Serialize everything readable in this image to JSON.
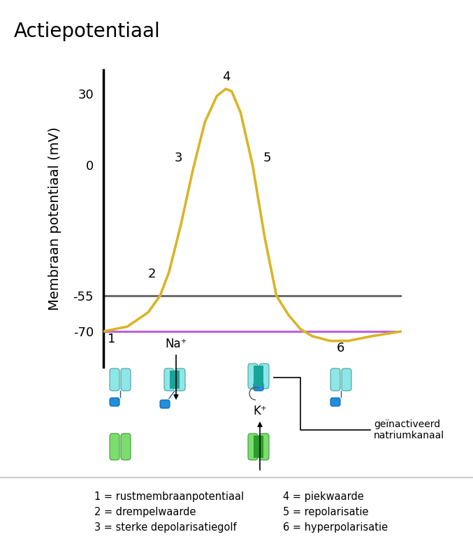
{
  "chart_data": {
    "type": "line",
    "title": "Actiepotentiaal",
    "y_label": "Membraan potentiaal (mV)",
    "x": [
      0,
      0.8,
      1.5,
      1.9,
      2.2,
      2.6,
      3.0,
      3.4,
      3.8,
      4.1,
      4.3,
      4.6,
      5.0,
      5.4,
      5.8,
      6.2,
      6.6,
      7.0,
      7.6,
      8.2,
      9.0,
      10
    ],
    "values": [
      -70,
      -68,
      -62,
      -55,
      -45,
      -25,
      -2,
      18,
      29,
      32,
      31,
      22,
      0,
      -30,
      -55,
      -63,
      -69,
      -72,
      -74,
      -74,
      -72,
      -70
    ],
    "color": "#d9b526",
    "xlim": [
      0,
      10
    ],
    "ylim": [
      -85,
      40
    ],
    "yticks": [
      30,
      0,
      -55,
      -70
    ],
    "tick_labels": "y",
    "reference_lines": [
      {
        "value": -55,
        "color": "#6d6d6d"
      },
      {
        "value": -70,
        "color": "#c060e0"
      }
    ],
    "annotations": [
      "1",
      "2",
      "3",
      "4",
      "5",
      "6"
    ],
    "channel_labels": {
      "sodium": "Na⁺",
      "potassium": "K⁺",
      "inactivated": "geïnactiveerd natriumkanaal"
    },
    "key": [
      "1 = rustmembraanpotentiaal",
      "2 = drempelwaarde",
      "3 = sterke depolarisatiegolf",
      "4 = piekwaarde",
      "5 = repolarisatie",
      "6 = hyperpolarisatie"
    ]
  }
}
